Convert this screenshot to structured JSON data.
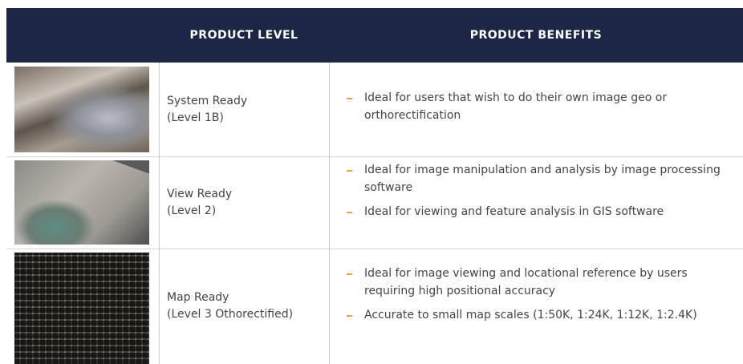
{
  "header": {
    "columns": [
      "PRODUCT LEVEL",
      "PRODUCT BENEFITS"
    ]
  },
  "rows": [
    {
      "level": [
        "System Ready",
        "(Level 1B)"
      ],
      "benefits": [
        "Ideal for users that wish to do their own image geo or orthorectification"
      ]
    },
    {
      "level": [
        "View Ready",
        "(Level 2)"
      ],
      "benefits": [
        " Ideal for image manipulation and analysis by image processing software",
        "Ideal for viewing and feature analysis in GIS software"
      ]
    },
    {
      "level": [
        "Map Ready",
        "(Level 3 Othorectified)"
      ],
      "benefits": [
        "Ideal for image viewing and locational reference by users requiring high positional accuracy",
        "Accurate to small map scales (1:50K, 1:24K, 1:12K, 1:2.4K)"
      ]
    }
  ]
}
